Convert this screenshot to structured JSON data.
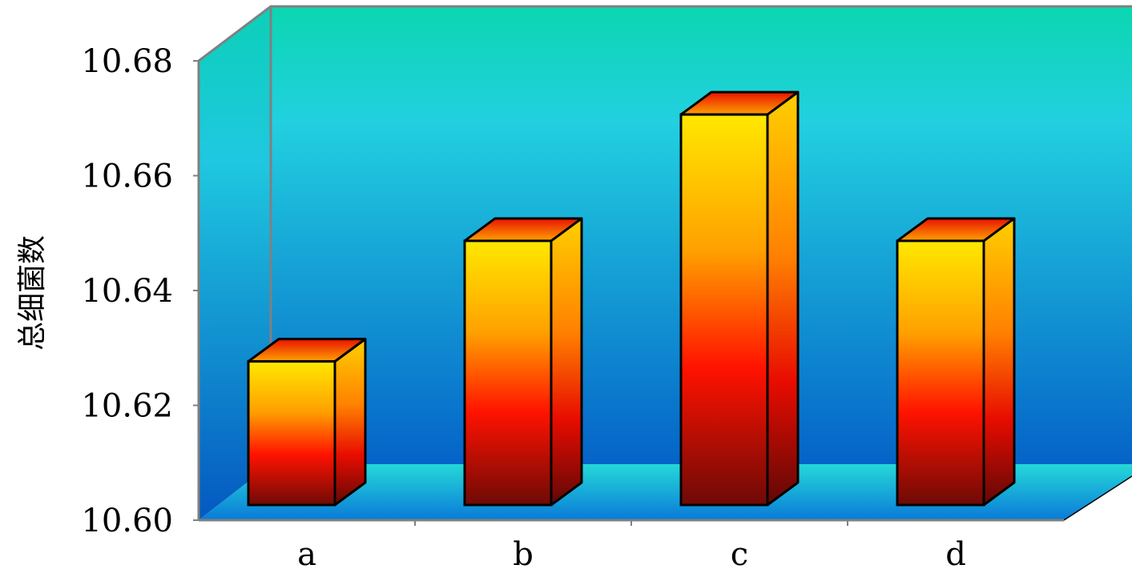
{
  "chart_data": {
    "type": "bar",
    "title": "",
    "xlabel": "",
    "ylabel": "总细菌数",
    "categories": [
      "a",
      "b",
      "c",
      "d"
    ],
    "values": [
      10.625,
      10.646,
      10.668,
      10.646
    ],
    "ylim": [
      10.6,
      10.68
    ],
    "yticks": [
      "10.60",
      "10.62",
      "10.64",
      "10.66",
      "10.68"
    ],
    "grid": false,
    "legend": "none",
    "style": "3d-column",
    "colors": {
      "wall_top": "#0bd6b0",
      "wall_mid": "#22d0e0",
      "wall_bottom": "#0563c8",
      "bar_top": "#ffe800",
      "bar_mid": "#ff1200",
      "bar_bottom": "#6e0a06"
    }
  }
}
